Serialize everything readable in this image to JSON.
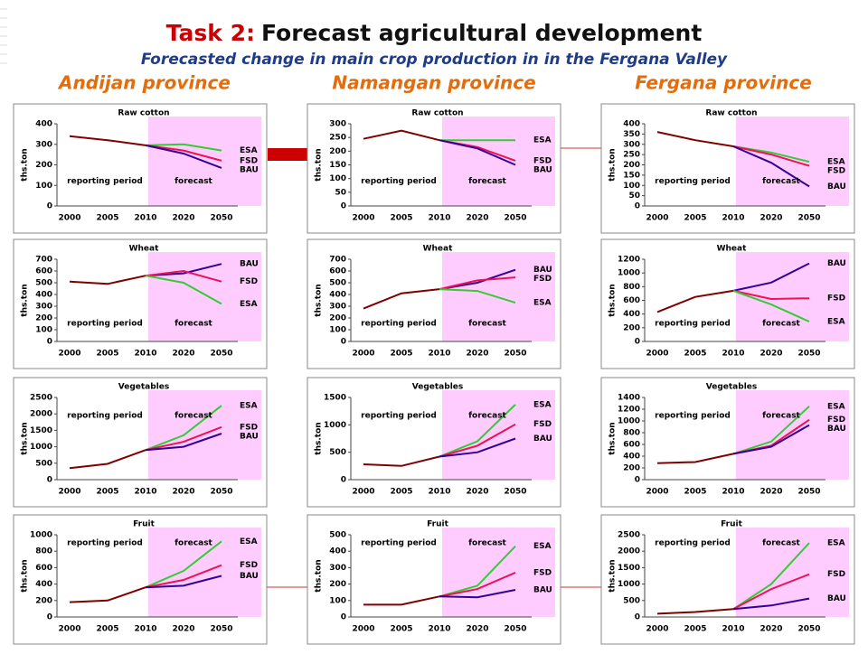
{
  "header": {
    "title_prefix": "Task 2:",
    "title": "Forecast agricultural development",
    "subtitle": "Forecasted change in main crop production in in the Fergana Valley",
    "provinces": [
      "Andijan province",
      "Namangan province",
      "Fergana province"
    ]
  },
  "chart_data": [
    {
      "type": "line",
      "title": "Raw cotton",
      "ylabel": "ths.ton",
      "categories": [
        "2000",
        "2005",
        "2010",
        "2020",
        "2050"
      ],
      "ylim": [
        0,
        400
      ],
      "yticks": [
        0,
        100,
        200,
        300,
        400
      ],
      "grid": false,
      "annotations": [
        "reporting period",
        "forecast"
      ],
      "series": [
        {
          "color": "#800000",
          "values": [
            340,
            320,
            295,
            null,
            null
          ]
        },
        {
          "name": "ESA",
          "color": "#33cc33",
          "values": [
            null,
            null,
            295,
            300,
            270
          ]
        },
        {
          "name": "FSD",
          "color": "#ee1155",
          "values": [
            null,
            null,
            295,
            270,
            220
          ]
        },
        {
          "name": "BAU",
          "color": "#330099",
          "values": [
            null,
            null,
            295,
            255,
            185
          ]
        }
      ]
    },
    {
      "type": "line",
      "title": "Raw cotton",
      "ylabel": "ths.ton",
      "categories": [
        "2000",
        "2005",
        "2010",
        "2020",
        "2050"
      ],
      "ylim": [
        0,
        300
      ],
      "yticks": [
        0,
        50,
        100,
        150,
        200,
        250,
        300
      ],
      "grid": false,
      "annotations": [
        "reporting period",
        "forecast"
      ],
      "series": [
        {
          "color": "#800000",
          "values": [
            245,
            275,
            240,
            null,
            null
          ]
        },
        {
          "name": "ESA",
          "color": "#33cc33",
          "values": [
            null,
            null,
            240,
            240,
            240
          ]
        },
        {
          "name": "FSD",
          "color": "#ee1155",
          "values": [
            null,
            null,
            240,
            215,
            165
          ]
        },
        {
          "name": "BAU",
          "color": "#330099",
          "values": [
            null,
            null,
            240,
            210,
            150
          ]
        }
      ]
    },
    {
      "type": "line",
      "title": "Raw cotton",
      "ylabel": "ths.ton",
      "categories": [
        "2000",
        "2005",
        "2010",
        "2020",
        "2050"
      ],
      "ylim": [
        0,
        400
      ],
      "yticks": [
        0,
        50,
        100,
        150,
        200,
        250,
        300,
        350,
        400
      ],
      "grid": false,
      "annotations": [
        "reporting period",
        "forecast"
      ],
      "series": [
        {
          "color": "#800000",
          "values": [
            360,
            320,
            290,
            null,
            null
          ]
        },
        {
          "name": "ESA",
          "color": "#33cc33",
          "values": [
            null,
            null,
            290,
            260,
            215
          ]
        },
        {
          "name": "FSD",
          "color": "#ee1155",
          "values": [
            null,
            null,
            290,
            250,
            195
          ]
        },
        {
          "name": "BAU",
          "color": "#330099",
          "values": [
            null,
            null,
            290,
            210,
            95
          ]
        }
      ]
    },
    {
      "type": "line",
      "title": "Wheat",
      "ylabel": "ths.ton",
      "categories": [
        "2000",
        "2005",
        "2010",
        "2020",
        "2050"
      ],
      "ylim": [
        0,
        700
      ],
      "yticks": [
        0,
        100,
        200,
        300,
        400,
        500,
        600,
        700
      ],
      "grid": false,
      "annotations": [
        "reporting period",
        "forecast"
      ],
      "series": [
        {
          "color": "#800000",
          "values": [
            510,
            490,
            560,
            null,
            null
          ]
        },
        {
          "name": "BAU",
          "color": "#330099",
          "values": [
            null,
            null,
            560,
            580,
            660
          ]
        },
        {
          "name": "FSD",
          "color": "#ee1155",
          "values": [
            null,
            null,
            560,
            600,
            510
          ]
        },
        {
          "name": "ESA",
          "color": "#33cc33",
          "values": [
            null,
            null,
            560,
            500,
            320
          ]
        }
      ]
    },
    {
      "type": "line",
      "title": "Wheat",
      "ylabel": "ths.ton",
      "categories": [
        "2000",
        "2005",
        "2010",
        "2020",
        "2050"
      ],
      "ylim": [
        0,
        700
      ],
      "yticks": [
        0,
        100,
        200,
        300,
        400,
        500,
        600,
        700
      ],
      "grid": false,
      "annotations": [
        "reporting period",
        "forecast"
      ],
      "series": [
        {
          "color": "#800000",
          "values": [
            280,
            410,
            445,
            null,
            null
          ]
        },
        {
          "name": "BAU",
          "color": "#330099",
          "values": [
            null,
            null,
            445,
            500,
            610
          ]
        },
        {
          "name": "FSD",
          "color": "#ee1155",
          "values": [
            null,
            null,
            445,
            520,
            545
          ]
        },
        {
          "name": "ESA",
          "color": "#33cc33",
          "values": [
            null,
            null,
            445,
            430,
            330
          ]
        }
      ]
    },
    {
      "type": "line",
      "title": "Wheat",
      "ylabel": "ths.ton",
      "categories": [
        "2000",
        "2005",
        "2010",
        "2020",
        "2050"
      ],
      "ylim": [
        0,
        1200
      ],
      "yticks": [
        0,
        200,
        400,
        600,
        800,
        1000,
        1200
      ],
      "grid": false,
      "annotations": [
        "reporting period",
        "forecast"
      ],
      "series": [
        {
          "color": "#800000",
          "values": [
            430,
            650,
            740,
            null,
            null
          ]
        },
        {
          "name": "BAU",
          "color": "#330099",
          "values": [
            null,
            null,
            740,
            860,
            1140
          ]
        },
        {
          "name": "FSD",
          "color": "#ee1155",
          "values": [
            null,
            null,
            740,
            620,
            630
          ]
        },
        {
          "name": "ESA",
          "color": "#33cc33",
          "values": [
            null,
            null,
            740,
            540,
            290
          ]
        }
      ]
    },
    {
      "type": "line",
      "title": "Vegetables",
      "ylabel": "ths.ton",
      "categories": [
        "2000",
        "2005",
        "2010",
        "2020",
        "2050"
      ],
      "ylim": [
        0,
        2500
      ],
      "yticks": [
        0,
        500,
        1000,
        1500,
        2000,
        2500
      ],
      "grid": false,
      "annotations": [
        "reporting period",
        "forecast"
      ],
      "series": [
        {
          "color": "#800000",
          "values": [
            350,
            480,
            900,
            null,
            null
          ]
        },
        {
          "name": "ESA",
          "color": "#33cc33",
          "values": [
            null,
            null,
            900,
            1350,
            2250
          ]
        },
        {
          "name": "FSD",
          "color": "#ee1155",
          "values": [
            null,
            null,
            900,
            1150,
            1600
          ]
        },
        {
          "name": "BAU",
          "color": "#330099",
          "values": [
            null,
            null,
            900,
            1000,
            1400
          ]
        }
      ]
    },
    {
      "type": "line",
      "title": "Vegetables",
      "ylabel": "ths.ton",
      "categories": [
        "2000",
        "2005",
        "2010",
        "2020",
        "2050"
      ],
      "ylim": [
        0,
        1500
      ],
      "yticks": [
        0,
        500,
        1000,
        1500
      ],
      "grid": false,
      "annotations": [
        "reporting period",
        "forecast"
      ],
      "series": [
        {
          "color": "#800000",
          "values": [
            280,
            250,
            420,
            null,
            null
          ]
        },
        {
          "name": "ESA",
          "color": "#33cc33",
          "values": [
            null,
            null,
            420,
            700,
            1370
          ]
        },
        {
          "name": "FSD",
          "color": "#ee1155",
          "values": [
            null,
            null,
            420,
            620,
            1010
          ]
        },
        {
          "name": "BAU",
          "color": "#330099",
          "values": [
            null,
            null,
            420,
            500,
            750
          ]
        }
      ]
    },
    {
      "type": "line",
      "title": "Vegetables",
      "ylabel": "ths.ton",
      "categories": [
        "2000",
        "2005",
        "2010",
        "2020",
        "2050"
      ],
      "ylim": [
        0,
        1400
      ],
      "yticks": [
        0,
        200,
        400,
        600,
        800,
        1000,
        1200,
        1400
      ],
      "grid": false,
      "annotations": [
        "reporting period",
        "forecast"
      ],
      "series": [
        {
          "color": "#800000",
          "values": [
            280,
            300,
            440,
            null,
            null
          ]
        },
        {
          "name": "ESA",
          "color": "#33cc33",
          "values": [
            null,
            null,
            440,
            650,
            1250
          ]
        },
        {
          "name": "FSD",
          "color": "#ee1155",
          "values": [
            null,
            null,
            440,
            580,
            1020
          ]
        },
        {
          "name": "BAU",
          "color": "#330099",
          "values": [
            null,
            null,
            440,
            560,
            930
          ]
        }
      ]
    },
    {
      "type": "line",
      "title": "Fruit",
      "ylabel": "ths.ton",
      "categories": [
        "2000",
        "2005",
        "2010",
        "2020",
        "2050"
      ],
      "ylim": [
        0,
        1000
      ],
      "yticks": [
        0,
        200,
        400,
        600,
        800,
        1000
      ],
      "grid": false,
      "annotations": [
        "reporting period",
        "forecast"
      ],
      "series": [
        {
          "color": "#800000",
          "values": [
            180,
            200,
            360,
            null,
            null
          ]
        },
        {
          "name": "ESA",
          "color": "#33cc33",
          "values": [
            null,
            null,
            360,
            560,
            920
          ]
        },
        {
          "name": "FSD",
          "color": "#ee1155",
          "values": [
            null,
            null,
            360,
            450,
            630
          ]
        },
        {
          "name": "BAU",
          "color": "#330099",
          "values": [
            null,
            null,
            360,
            380,
            500
          ]
        }
      ]
    },
    {
      "type": "line",
      "title": "Fruit",
      "ylabel": "ths.ton",
      "categories": [
        "2000",
        "2005",
        "2010",
        "2020",
        "2050"
      ],
      "ylim": [
        0,
        500
      ],
      "yticks": [
        0,
        100,
        200,
        300,
        400,
        500
      ],
      "grid": false,
      "annotations": [
        "reporting period",
        "forecast"
      ],
      "series": [
        {
          "color": "#800000",
          "values": [
            75,
            75,
            125,
            null,
            null
          ]
        },
        {
          "name": "ESA",
          "color": "#33cc33",
          "values": [
            null,
            null,
            125,
            190,
            430
          ]
        },
        {
          "name": "FSD",
          "color": "#ee1155",
          "values": [
            null,
            null,
            125,
            170,
            270
          ]
        },
        {
          "name": "BAU",
          "color": "#330099",
          "values": [
            null,
            null,
            125,
            120,
            165
          ]
        }
      ]
    },
    {
      "type": "line",
      "title": "Fruit",
      "ylabel": "ths.ton",
      "categories": [
        "2000",
        "2005",
        "2010",
        "2020",
        "2050"
      ],
      "ylim": [
        0,
        2500
      ],
      "yticks": [
        0,
        500,
        1000,
        1500,
        2000,
        2500
      ],
      "grid": false,
      "annotations": [
        "reporting period",
        "forecast"
      ],
      "series": [
        {
          "color": "#800000",
          "values": [
            100,
            150,
            240,
            null,
            null
          ]
        },
        {
          "name": "ESA",
          "color": "#33cc33",
          "values": [
            null,
            null,
            240,
            1000,
            2250
          ]
        },
        {
          "name": "FSD",
          "color": "#ee1155",
          "values": [
            null,
            null,
            240,
            850,
            1300
          ]
        },
        {
          "name": "BAU",
          "color": "#330099",
          "values": [
            null,
            null,
            240,
            350,
            560
          ]
        }
      ]
    }
  ]
}
